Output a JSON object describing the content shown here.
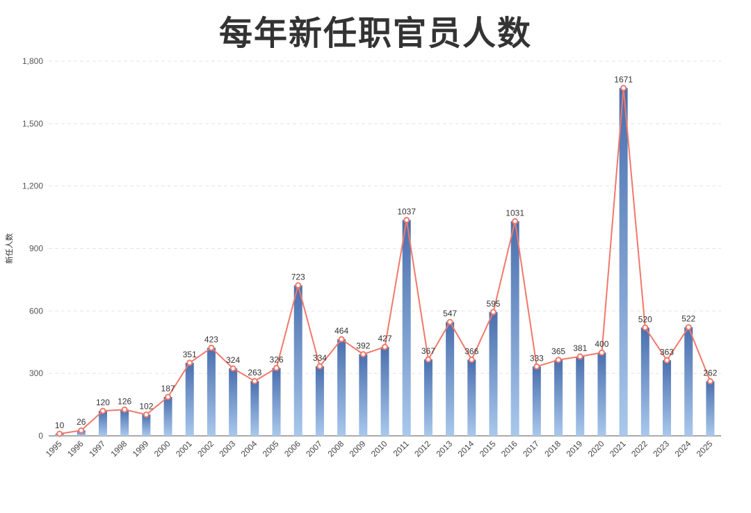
{
  "chart_data": {
    "type": "bar",
    "title": "每年新任职官员人数",
    "xlabel": "",
    "ylabel": "新任人数",
    "ylim": [
      0,
      1800
    ],
    "yticks": [
      0,
      300,
      600,
      900,
      1200,
      1500,
      1800
    ],
    "ytick_labels": [
      "0",
      "300",
      "600",
      "900",
      "1,200",
      "1,500",
      "1,800"
    ],
    "categories": [
      "1995",
      "1996",
      "1997",
      "1998",
      "1999",
      "2000",
      "2001",
      "2002",
      "2003",
      "2004",
      "2005",
      "2006",
      "2007",
      "2008",
      "2009",
      "2010",
      "2011",
      "2012",
      "2013",
      "2014",
      "2015",
      "2016",
      "2017",
      "2018",
      "2019",
      "2020",
      "2021",
      "2022",
      "2023",
      "2024",
      "2025"
    ],
    "values": [
      10,
      26,
      120,
      126,
      102,
      187,
      351,
      423,
      324,
      263,
      326,
      723,
      334,
      464,
      392,
      427,
      1037,
      367,
      547,
      366,
      595,
      1031,
      333,
      365,
      381,
      400,
      1671,
      520,
      363,
      522,
      262
    ],
    "overlay": "line",
    "grid": true,
    "legend": "none",
    "colors": {
      "bar_top": "#4a6fae",
      "bar_bottom": "#a9c8ec",
      "line": "#f0786a",
      "grid": "#e3e3e3",
      "axis": "#555555"
    }
  }
}
